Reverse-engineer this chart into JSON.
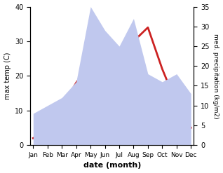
{
  "months": [
    "Jan",
    "Feb",
    "Mar",
    "Apr",
    "May",
    "Jun",
    "Jul",
    "Aug",
    "Sep",
    "Oct",
    "Nov",
    "Dec"
  ],
  "temperature": [
    2,
    4,
    11,
    18,
    24,
    27,
    28,
    30,
    34,
    22,
    12,
    5
  ],
  "precipitation": [
    8,
    10,
    12,
    16,
    35,
    29,
    25,
    32,
    18,
    16,
    18,
    13
  ],
  "temp_color": "#cc2222",
  "precip_color": "#c0c8ee",
  "temp_ylim": [
    0,
    40
  ],
  "precip_ylim": [
    0,
    35
  ],
  "temp_yticks": [
    0,
    10,
    20,
    30,
    40
  ],
  "precip_yticks": [
    0,
    5,
    10,
    15,
    20,
    25,
    30,
    35
  ],
  "xlabel": "date (month)",
  "ylabel_left": "max temp (C)",
  "ylabel_right": "med. precipitation (kg/m2)",
  "temp_linewidth": 2.0,
  "background_color": "#ffffff"
}
